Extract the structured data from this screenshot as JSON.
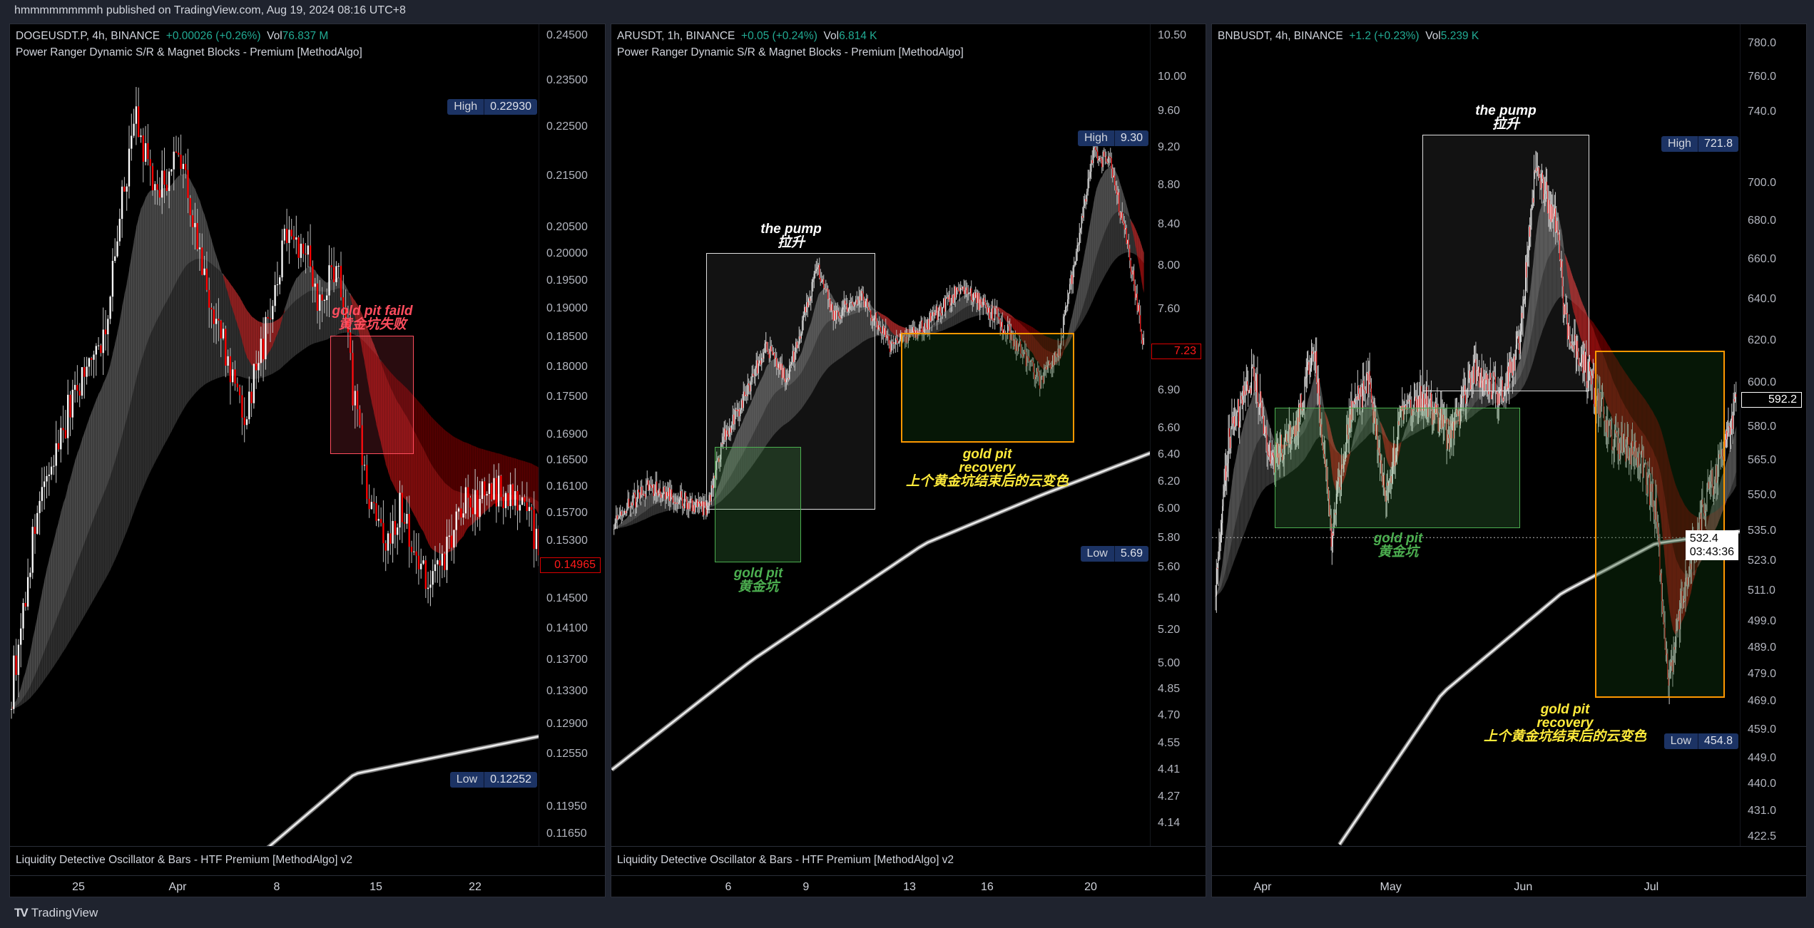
{
  "header": {
    "published": "hmmmmmmmmh published on TradingView.com, Aug 19, 2024 08:16 UTC+8"
  },
  "footer": {
    "brand": "TradingView",
    "logo_icon": "tradingview-logo-icon"
  },
  "colors": {
    "up": "#ffffff",
    "down": "#ff0000",
    "green_text": "#22ab94",
    "badge_bg": "#1c3364",
    "gold_pit_green": "#4caf50",
    "recovery_orange": "#ff9800",
    "recovery_text": "#ffeb3b",
    "fail_red": "#ff4d5e"
  },
  "panels": [
    {
      "symbol": "DOGEUSDT.P, 4h, BINANCE",
      "change": "+0.00026 (+0.26%)",
      "vol_label": "Vol",
      "vol": "76.837 M",
      "indicator": "Power Ranger Dynamic S/R & Magnet Blocks - Premium [MethodAlgo]",
      "oscillator": "Liquidity Detective Oscillator & Bars - HTF Premium [MethodAlgo] v2",
      "high_label": "High",
      "high": "0.22930",
      "low_label": "Low",
      "low": "0.12252",
      "last": "0.14965",
      "annotations": {
        "fail_1": "gold pit faild",
        "fail_2": "黄金坑失败"
      }
    },
    {
      "symbol": "ARUSDT, 1h, BINANCE",
      "change": "+0.05 (+0.24%)",
      "vol_label": "Vol",
      "vol": "6.814 K",
      "indicator": "Power Ranger Dynamic S/R & Magnet Blocks - Premium [MethodAlgo]",
      "oscillator": "Liquidity Detective Oscillator & Bars - HTF Premium [MethodAlgo] v2",
      "high_label": "High",
      "high": "9.30",
      "low_label": "Low",
      "low": "5.69",
      "last": "7.23",
      "annotations": {
        "pump_1": "the pump",
        "pump_2": "拉升",
        "pit_1": "gold pit",
        "pit_2": "黄金坑",
        "rec_1": "gold pit",
        "rec_2": "recovery",
        "rec_3": "上个黄金坑结束后的云变色"
      }
    },
    {
      "symbol": "BNBUSDT, 4h, BINANCE",
      "change": "+1.2 (+0.23%)",
      "vol_label": "Vol",
      "vol": "5.239 K",
      "high_label": "High",
      "high": "721.8",
      "low_label": "Low",
      "low": "454.8",
      "last": "592.2",
      "crosshair_price": "532.4",
      "crosshair_countdown": "03:43:36",
      "annotations": {
        "pump_1": "the pump",
        "pump_2": "拉升",
        "pit_1": "gold pit",
        "pit_2": "黄金坑",
        "rec_1": "gold pit",
        "rec_2": "recovery",
        "rec_3": "上个黄金坑结束后的云变色"
      }
    }
  ],
  "chart_data": [
    {
      "type": "candlestick",
      "symbol": "DOGEUSDT.P",
      "interval": "4h",
      "y_scale": "log",
      "ylim": [
        0.1165,
        0.245
      ],
      "y_ticks": [
        "0.24500",
        "0.23500",
        "0.22500",
        "0.21500",
        "0.20500",
        "0.20000",
        "0.19500",
        "0.19000",
        "0.18500",
        "0.18000",
        "0.17500",
        "0.16900",
        "0.16500",
        "0.16100",
        "0.15700",
        "0.15300",
        "0.14500",
        "0.14100",
        "0.13700",
        "0.13300",
        "0.12900",
        "0.12550",
        "0.11950",
        "0.11650"
      ],
      "x_ticks": [
        {
          "label": "25",
          "date": "2024-03-25"
        },
        {
          "label": "Apr",
          "date": "2024-04-01"
        },
        {
          "label": "8",
          "date": "2024-04-08"
        },
        {
          "label": "15",
          "date": "2024-04-15"
        },
        {
          "label": "22",
          "date": "2024-04-22"
        }
      ],
      "price_path": [
        [
          "2024-03-20T00:00",
          0.13
        ],
        [
          "2024-03-22T00:00",
          0.156
        ],
        [
          "2024-03-24T10:00",
          0.174
        ],
        [
          "2024-03-26T22:00",
          0.187
        ],
        [
          "2024-03-28T22:00",
          0.227
        ],
        [
          "2024-03-30T12:00",
          0.211
        ],
        [
          "2024-04-01T05:00",
          0.22
        ],
        [
          "2024-04-02T22:00",
          0.194
        ],
        [
          "2024-04-05T17:00",
          0.172
        ],
        [
          "2024-04-07T10:00",
          0.187
        ],
        [
          "2024-04-08T19:00",
          0.206
        ],
        [
          "2024-04-10T05:00",
          0.2
        ],
        [
          "2024-04-11T00:00",
          0.19
        ],
        [
          "2024-04-12T05:00",
          0.199
        ],
        [
          "2024-04-13T12:00",
          0.174
        ],
        [
          "2024-04-14T07:00",
          0.161
        ],
        [
          "2024-04-15T12:00",
          0.152
        ],
        [
          "2024-04-16T17:00",
          0.158
        ],
        [
          "2024-04-18T19:00",
          0.146
        ],
        [
          "2024-04-21T05:00",
          0.158
        ],
        [
          "2024-04-24T12:00",
          0.161
        ],
        [
          "2024-04-27T12:00",
          0.1497
        ]
      ],
      "ma_path": [
        [
          "2024-04-05T00:00",
          0.112
        ],
        [
          "2024-04-13T12:00",
          0.1232
        ],
        [
          "2024-04-27T18:00",
          0.128
        ]
      ],
      "last_price": 0.14965,
      "high": 0.2293,
      "low": 0.12252
    },
    {
      "type": "candlestick",
      "symbol": "ARUSDT",
      "interval": "1h",
      "y_scale": "log",
      "ylim": [
        4.14,
        10.5
      ],
      "y_ticks": [
        "10.50",
        "10.00",
        "9.60",
        "9.20",
        "8.80",
        "8.40",
        "8.00",
        "7.60",
        "6.90",
        "6.60",
        "6.40",
        "6.20",
        "6.00",
        "5.80",
        "5.60",
        "5.40",
        "5.20",
        "5.00",
        "4.85",
        "4.70",
        "4.55",
        "4.41",
        "4.27",
        "4.14"
      ],
      "x_ticks": [
        {
          "label": "6",
          "date": "2024-08-06"
        },
        {
          "label": "9",
          "date": "2024-08-09"
        },
        {
          "label": "13",
          "date": "2024-08-13"
        },
        {
          "label": "16",
          "date": "2024-08-16"
        },
        {
          "label": "20",
          "date": "2024-08-20"
        }
      ],
      "price_path": [
        [
          "2024-08-01T14:00",
          5.92
        ],
        [
          "2024-08-02T22:00",
          6.17
        ],
        [
          "2024-08-03T19:00",
          6.1
        ],
        [
          "2024-08-05T05:00",
          6.0
        ],
        [
          "2024-08-05T19:00",
          6.52
        ],
        [
          "2024-08-06T12:00",
          6.79
        ],
        [
          "2024-08-07T10:00",
          7.27
        ],
        [
          "2024-08-08T07:00",
          7.0
        ],
        [
          "2024-08-09T10:00",
          7.99
        ],
        [
          "2024-08-10T02:00",
          7.55
        ],
        [
          "2024-08-11T05:00",
          7.7
        ],
        [
          "2024-08-12T07:00",
          7.27
        ],
        [
          "2024-08-13T14:00",
          7.45
        ],
        [
          "2024-08-15T00:00",
          7.8
        ],
        [
          "2024-08-16T07:00",
          7.55
        ],
        [
          "2024-08-17T05:00",
          7.27
        ],
        [
          "2024-08-18T02:00",
          6.97
        ],
        [
          "2024-08-18T19:00",
          7.27
        ],
        [
          "2024-08-19T12:00",
          8.2
        ],
        [
          "2024-08-20T02:00",
          9.15
        ],
        [
          "2024-08-20T19:00",
          9.0
        ],
        [
          "2024-08-21T12:00",
          8.1
        ],
        [
          "2024-08-22T02:00",
          7.23
        ]
      ],
      "ma_path": [
        [
          "2024-08-01T12:00",
          4.41
        ],
        [
          "2024-08-06T22:00",
          5.02
        ],
        [
          "2024-08-13T14:00",
          5.76
        ],
        [
          "2024-08-18T02:00",
          6.1
        ],
        [
          "2024-08-22T10:00",
          6.42
        ]
      ],
      "last_price": 7.23,
      "high": 9.3,
      "low": 5.69
    },
    {
      "type": "candlestick",
      "symbol": "BNBUSDT",
      "interval": "4h",
      "y_scale": "log",
      "ylim": [
        422.5,
        780
      ],
      "y_ticks": [
        "780.0",
        "760.0",
        "740.0",
        "700.0",
        "680.0",
        "660.0",
        "640.0",
        "620.0",
        "600.0",
        "580.0",
        "565.0",
        "550.0",
        "535.0",
        "523.0",
        "511.0",
        "499.0",
        "489.0",
        "479.0",
        "469.0",
        "459.0",
        "449.0",
        "440.0",
        "431.0",
        "422.5"
      ],
      "x_ticks": [
        {
          "label": "Apr",
          "date": "2024-04-01"
        },
        {
          "label": "May",
          "date": "2024-05-01"
        },
        {
          "label": "Jun",
          "date": "2024-06-01"
        },
        {
          "label": "Jul",
          "date": "2024-07-01"
        }
      ],
      "price_path": [
        [
          "2024-03-21T00:00",
          515
        ],
        [
          "2024-03-24T00:00",
          574
        ],
        [
          "2024-03-30T00:00",
          606
        ],
        [
          "2024-04-03T00:00",
          564
        ],
        [
          "2024-04-09T00:00",
          580
        ],
        [
          "2024-04-13T00:00",
          618
        ],
        [
          "2024-04-17T00:00",
          534
        ],
        [
          "2024-04-22T00:00",
          590
        ],
        [
          "2024-04-26T00:00",
          600
        ],
        [
          "2024-04-30T00:00",
          549
        ],
        [
          "2024-05-04T00:00",
          590
        ],
        [
          "2024-05-09T00:00",
          593
        ],
        [
          "2024-05-15T00:00",
          574
        ],
        [
          "2024-05-20T00:00",
          606
        ],
        [
          "2024-05-27T00:00",
          595
        ],
        [
          "2024-05-31T00:00",
          618
        ],
        [
          "2024-06-04T00:00",
          711
        ],
        [
          "2024-06-09T00:00",
          674
        ],
        [
          "2024-06-11T00:00",
          628
        ],
        [
          "2024-06-17T00:00",
          600
        ],
        [
          "2024-06-22T00:00",
          574
        ],
        [
          "2024-06-28T00:00",
          568
        ],
        [
          "2024-07-02T00:00",
          544
        ],
        [
          "2024-07-05T00:00",
          476
        ],
        [
          "2024-07-09T00:00",
          515
        ],
        [
          "2024-07-13T00:00",
          544
        ],
        [
          "2024-07-17T00:00",
          565
        ],
        [
          "2024-07-21T00:00",
          592.2
        ]
      ],
      "ma_path": [
        [
          "2024-04-19T00:00",
          420
        ],
        [
          "2024-05-13T00:00",
          472
        ],
        [
          "2024-06-10T00:00",
          510
        ],
        [
          "2024-07-02T00:00",
          530
        ],
        [
          "2024-07-22T00:00",
          535
        ]
      ],
      "last_price": 592.2,
      "high": 721.8,
      "low": 454.8,
      "crosshair_price": 532.4
    }
  ]
}
